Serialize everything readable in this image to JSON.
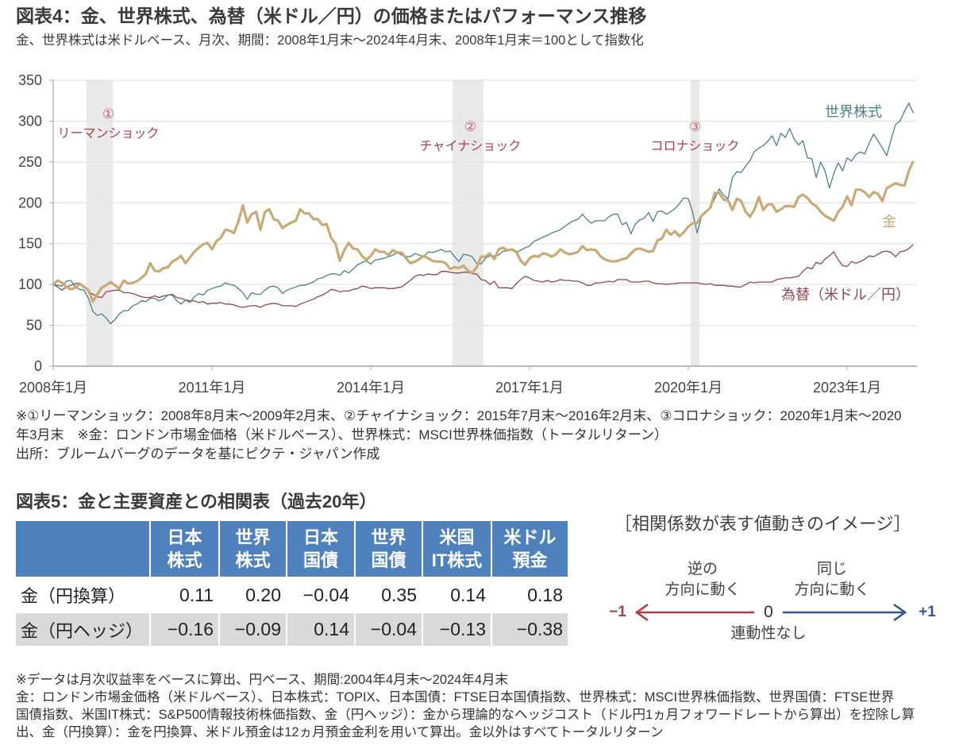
{
  "chart_data": {
    "type": "line",
    "title": "図表4：金、世界株式、為替（米ドル／円）の価格またはパフォーマンス推移",
    "subtitle": "金、世界株式は米ドルベース、月次、期間：2008年1月末～2024年4月末、2008年1月末＝100として指数化",
    "xlabel": "",
    "ylabel": "",
    "x_start": "2008-01",
    "x_end": "2024-04",
    "frequency": "monthly",
    "ylim": [
      0,
      350
    ],
    "grid": true,
    "yticks": [
      0,
      50,
      100,
      150,
      200,
      250,
      300,
      350
    ],
    "xticks": [
      {
        "date": "2008-01",
        "label": "2008年1月"
      },
      {
        "date": "2011-01",
        "label": "2011年1月"
      },
      {
        "date": "2014-01",
        "label": "2014年1月"
      },
      {
        "date": "2017-01",
        "label": "2017年1月"
      },
      {
        "date": "2020-01",
        "label": "2020年1月"
      },
      {
        "date": "2023-01",
        "label": "2023年1月"
      }
    ],
    "shaded_periods": [
      {
        "start": "2008-08",
        "end": "2009-02",
        "number": "①",
        "label": "リーマンショック"
      },
      {
        "start": "2015-07",
        "end": "2016-02",
        "number": "②",
        "label": "チャイナショック"
      },
      {
        "start": "2020-01",
        "end": "2020-03",
        "number": "③",
        "label": "コロナショック"
      }
    ],
    "series": [
      {
        "name": "為替（米ドル／円）",
        "color": "#8b4a4a",
        "values": [
          100,
          97,
          93,
          97,
          99,
          101,
          102,
          98,
          91,
          88,
          85,
          84,
          91,
          92,
          93,
          93,
          90,
          90,
          89,
          87,
          85,
          84,
          84,
          86,
          84,
          86,
          87,
          88,
          84,
          83,
          81,
          80,
          80,
          78,
          79,
          76,
          77,
          77,
          78,
          76,
          76,
          75,
          73,
          72,
          73,
          74,
          74,
          72,
          75,
          76,
          77,
          76,
          74,
          74,
          74,
          73,
          76,
          78,
          80,
          82,
          85,
          87,
          90,
          94,
          93,
          91,
          92,
          92,
          94,
          95,
          98,
          97,
          95,
          96,
          96,
          96,
          95,
          95,
          96,
          97,
          101,
          105,
          110,
          112,
          111,
          113,
          112,
          112,
          116,
          116,
          115,
          114,
          114,
          115,
          115,
          113,
          113,
          106,
          105,
          100,
          104,
          96,
          96,
          96,
          95,
          101,
          106,
          110,
          108,
          105,
          104,
          103,
          105,
          103,
          104,
          106,
          105,
          105,
          104,
          104,
          102,
          99,
          99,
          102,
          102,
          103,
          104,
          103,
          106,
          106,
          106,
          103,
          103,
          103,
          104,
          104,
          102,
          101,
          101,
          100,
          101,
          101,
          102,
          102,
          102,
          102,
          102,
          101,
          100,
          101,
          99,
          99,
          99,
          98,
          98,
          97,
          97,
          100,
          103,
          102,
          103,
          103,
          103,
          103,
          106,
          107,
          108,
          108,
          109,
          110,
          116,
          121,
          119,
          127,
          125,
          131,
          135,
          140,
          130,
          123,
          122,
          128,
          126,
          128,
          131,
          135,
          134,
          137,
          140,
          141,
          139,
          134,
          140,
          141,
          144,
          149
        ]
      },
      {
        "name": "世界株式",
        "color": "#4a7f8a",
        "values": [
          100,
          99,
          98,
          104,
          105,
          97,
          94,
          93,
          83,
          67,
          62,
          64,
          59,
          52,
          57,
          64,
          68,
          68,
          74,
          76,
          80,
          79,
          83,
          83,
          80,
          82,
          87,
          87,
          80,
          76,
          81,
          78,
          85,
          89,
          87,
          93,
          95,
          97,
          98,
          102,
          100,
          99,
          95,
          90,
          82,
          90,
          88,
          88,
          93,
          97,
          98,
          96,
          89,
          93,
          95,
          97,
          99,
          99,
          101,
          103,
          107,
          108,
          111,
          113,
          113,
          111,
          117,
          114,
          119,
          124,
          127,
          129,
          125,
          130,
          131,
          132,
          134,
          136,
          139,
          136,
          134,
          134,
          138,
          136,
          134,
          140,
          139,
          141,
          143,
          140,
          141,
          134,
          128,
          137,
          136,
          134,
          126,
          125,
          132,
          135,
          135,
          136,
          141,
          141,
          142,
          139,
          142,
          145,
          147,
          153,
          155,
          158,
          160,
          163,
          165,
          167,
          171,
          175,
          178,
          180,
          186,
          180,
          175,
          178,
          178,
          178,
          183,
          186,
          186,
          173,
          176,
          162,
          174,
          179,
          181,
          188,
          177,
          189,
          190,
          186,
          189,
          193,
          199,
          206,
          205,
          188,
          163,
          183,
          189,
          194,
          205,
          217,
          209,
          205,
          231,
          238,
          237,
          245,
          252,
          263,
          267,
          270,
          275,
          282,
          270,
          285,
          280,
          291,
          278,
          271,
          276,
          255,
          254,
          231,
          250,
          239,
          218,
          236,
          249,
          239,
          255,
          251,
          259,
          262,
          260,
          273,
          284,
          276,
          267,
          258,
          278,
          296,
          300,
          312,
          322,
          310
        ]
      },
      {
        "name": "金",
        "color": "#c8aa76",
        "values": [
          100,
          105,
          102,
          97,
          94,
          96,
          101,
          97,
          93,
          79,
          88,
          96,
          99,
          103,
          99,
          95,
          105,
          101,
          102,
          104,
          108,
          113,
          126,
          117,
          116,
          120,
          121,
          128,
          131,
          135,
          126,
          133,
          140,
          145,
          149,
          151,
          143,
          153,
          157,
          167,
          166,
          163,
          177,
          197,
          176,
          186,
          189,
          167,
          189,
          192,
          180,
          178,
          169,
          173,
          176,
          178,
          192,
          187,
          187,
          180,
          180,
          173,
          174,
          157,
          150,
          129,
          142,
          151,
          144,
          143,
          135,
          130,
          135,
          143,
          140,
          140,
          136,
          142,
          139,
          139,
          132,
          126,
          128,
          131,
          135,
          132,
          129,
          128,
          128,
          126,
          119,
          121,
          120,
          123,
          117,
          114,
          121,
          134,
          134,
          138,
          131,
          143,
          145,
          142,
          143,
          140,
          129,
          124,
          132,
          135,
          134,
          138,
          137,
          134,
          137,
          143,
          139,
          137,
          138,
          140,
          147,
          142,
          143,
          142,
          135,
          131,
          129,
          128,
          129,
          131,
          132,
          138,
          143,
          144,
          142,
          140,
          141,
          154,
          156,
          167,
          161,
          165,
          159,
          164,
          171,
          175,
          175,
          184,
          189,
          194,
          212,
          212,
          204,
          203,
          191,
          205,
          202,
          189,
          183,
          192,
          207,
          191,
          198,
          198,
          189,
          192,
          196,
          196,
          195,
          207,
          210,
          206,
          199,
          196,
          189,
          184,
          181,
          178,
          189,
          195,
          208,
          197,
          216,
          216,
          213,
          207,
          213,
          211,
          202,
          218,
          221,
          224,
          222,
          221,
          239,
          251
        ]
      }
    ]
  },
  "figure4_notes": [
    "※①リーマンショック：2008年8月末～2009年2月末、②チャイナショック：2015年7月末～2016年2月末、③コロナショック：2020年1月末～2020",
    "年3月末　※金：ロンドン市場金価格（米ドルベース）、世界株式：MSCI世界株価指数（トータルリターン）",
    "出所：ブルームバーグのデータを基にピクテ・ジャパン作成"
  ],
  "figure5": {
    "title": "図表5：金と主要資産との相関表（過去20年）",
    "table": {
      "columns": [
        [
          "日本",
          "株式"
        ],
        [
          "世界",
          "株式"
        ],
        [
          "日本",
          "国債"
        ],
        [
          "世界",
          "国債"
        ],
        [
          "米国",
          "IT株式"
        ],
        [
          "米ドル",
          "預金"
        ]
      ],
      "rows": [
        {
          "label": "金（円換算）",
          "values": [
            "0.11",
            "0.20",
            "−0.04",
            "0.35",
            "0.14",
            "0.18"
          ]
        },
        {
          "label": "金（円ヘッジ）",
          "values": [
            "−0.16",
            "−0.09",
            "0.14",
            "−0.04",
            "−0.13",
            "−0.38"
          ]
        }
      ],
      "header_color": "#4f81bd",
      "alt_row_color": "#d9d9d9"
    },
    "diagram": {
      "title": "［相関係数が表す値動きのイメージ］",
      "negative_line1": "逆の",
      "negative_line2": "方向に動く",
      "positive_line1": "同じ",
      "positive_line2": "方向に動く",
      "minus_one": "−1",
      "zero": "0",
      "plus_one": "+1",
      "zero_caption": "連動性なし",
      "negative_color": "#a93f44",
      "positive_color": "#35578c"
    },
    "notes": [
      "※データは月次収益率をベースに算出、円ベース、期間:2004年4月末～2024年4月末",
      "金：ロンドン市場金価格（米ドルベース）、日本株式：TOPIX、日本国債：FTSE日本国債指数、世界株式：MSCI世界株価指数、世界国債：FTSE世界",
      "国債指数、米国IT株式：S&P500情報技術株価指数、金（円ヘッジ）：金から理論的なヘッジコスト（ドル円1ヵ月フォワードレートから算出）を控除し算",
      "出、金（円換算）：金を円換算、米ドル預金は12ヵ月預金金利を用いて算出。金以外はすべてトータルリターン"
    ]
  }
}
